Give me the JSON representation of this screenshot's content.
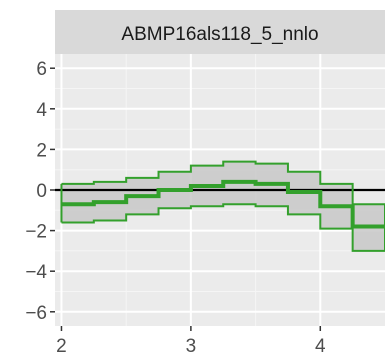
{
  "chart_data": {
    "type": "step",
    "facet_title": "ABMP16als118_5_nnlo",
    "xlim": [
      1.95,
      4.5
    ],
    "ylim": [
      -6.7,
      6.7
    ],
    "x_ticks": [
      2,
      3,
      4
    ],
    "y_ticks": [
      -6,
      -4,
      -2,
      0,
      2,
      4,
      6
    ],
    "x_tick_labels": [
      "2",
      "3",
      "4"
    ],
    "y_tick_labels": [
      "−6",
      "−4",
      "−2",
      "0",
      "2",
      "4",
      "6"
    ],
    "reference_line_y": 0,
    "grid": true,
    "series_color": "#33a02c",
    "band_fill": "#c8c8c8",
    "bins": [
      {
        "x0": 2.0,
        "x1": 2.25,
        "center": -0.7,
        "lower": -1.6,
        "upper": 0.3
      },
      {
        "x0": 2.25,
        "x1": 2.5,
        "center": -0.6,
        "lower": -1.5,
        "upper": 0.4
      },
      {
        "x0": 2.5,
        "x1": 2.75,
        "center": -0.3,
        "lower": -1.2,
        "upper": 0.6
      },
      {
        "x0": 2.75,
        "x1": 3.0,
        "center": 0.0,
        "lower": -0.9,
        "upper": 0.9
      },
      {
        "x0": 3.0,
        "x1": 3.25,
        "center": 0.2,
        "lower": -0.8,
        "upper": 1.2
      },
      {
        "x0": 3.25,
        "x1": 3.5,
        "center": 0.4,
        "lower": -0.7,
        "upper": 1.4
      },
      {
        "x0": 3.5,
        "x1": 3.75,
        "center": 0.3,
        "lower": -0.8,
        "upper": 1.3
      },
      {
        "x0": 3.75,
        "x1": 4.0,
        "center": -0.1,
        "lower": -1.2,
        "upper": 0.9
      },
      {
        "x0": 4.0,
        "x1": 4.25,
        "center": -0.8,
        "lower": -1.9,
        "upper": 0.3
      },
      {
        "x0": 4.25,
        "x1": 4.5,
        "center": -1.8,
        "lower": -3.0,
        "upper": -0.7
      }
    ]
  }
}
